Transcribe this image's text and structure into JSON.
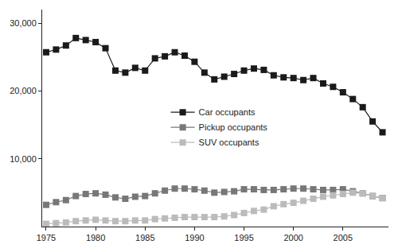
{
  "chart_data": {
    "type": "line",
    "x": [
      1975,
      1976,
      1977,
      1978,
      1979,
      1980,
      1981,
      1982,
      1983,
      1984,
      1985,
      1986,
      1987,
      1988,
      1989,
      1990,
      1991,
      1992,
      1993,
      1994,
      1995,
      1996,
      1997,
      1998,
      1999,
      2000,
      2001,
      2002,
      2003,
      2004,
      2005,
      2006,
      2007,
      2008,
      2009
    ],
    "series": [
      {
        "name": "Car occupants",
        "color": "#1a1a1a",
        "marker": "square",
        "line_style": "solid",
        "values": [
          25700,
          26100,
          26700,
          27800,
          27500,
          27200,
          26300,
          23000,
          22700,
          23400,
          23000,
          24800,
          25100,
          25700,
          25200,
          24300,
          22700,
          21700,
          22100,
          22500,
          23000,
          23300,
          23100,
          22300,
          22000,
          21900,
          21600,
          21900,
          21100,
          20600,
          19800,
          18800,
          17600,
          15500,
          13900
        ]
      },
      {
        "name": "Pickup occupants",
        "color": "#777777",
        "marker": "square",
        "line_style": "solid",
        "values": [
          3200,
          3600,
          3900,
          4500,
          4800,
          4900,
          4700,
          4300,
          4100,
          4400,
          4500,
          4900,
          5300,
          5600,
          5600,
          5500,
          5300,
          5000,
          5100,
          5200,
          5500,
          5500,
          5400,
          5400,
          5500,
          5600,
          5600,
          5500,
          5400,
          5400,
          5500,
          5200,
          4900,
          4500,
          4200
        ]
      },
      {
        "name": "SUV occupants",
        "color": "#bbbbbb",
        "marker": "square",
        "line_style": "solid",
        "values": [
          400,
          500,
          600,
          800,
          900,
          1000,
          900,
          800,
          800,
          900,
          900,
          1100,
          1200,
          1300,
          1400,
          1400,
          1400,
          1400,
          1500,
          1700,
          2000,
          2300,
          2500,
          3000,
          3300,
          3500,
          3800,
          4100,
          4400,
          4600,
          4800,
          5000,
          4900,
          4500,
          4200
        ]
      }
    ],
    "xlim": [
      1974.6,
      2009.6
    ],
    "xticks": [
      1975,
      1980,
      1985,
      1990,
      1995,
      2000,
      2005
    ],
    "ylim": [
      0,
      32000
    ],
    "yticks": [
      {
        "value": 10000,
        "label": "10,000"
      },
      {
        "value": 20000,
        "label": "20,000"
      },
      {
        "value": 30000,
        "label": "30,000"
      }
    ],
    "grid": false,
    "legend": "center"
  }
}
